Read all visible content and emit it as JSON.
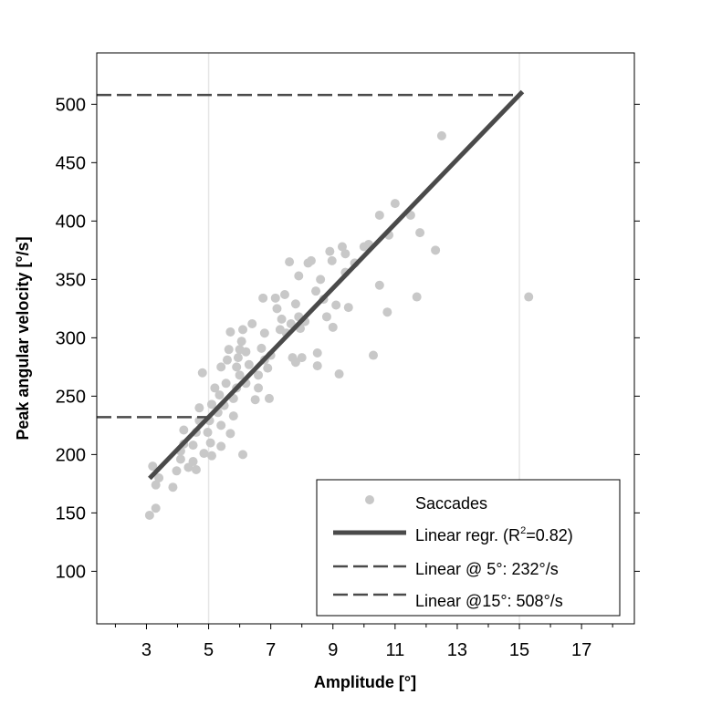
{
  "chart_data": {
    "type": "scatter",
    "title": "",
    "xlabel": "Amplitude [°]",
    "ylabel": "Peak angular velocity [°/s]",
    "xlim": [
      1.4,
      18.7
    ],
    "ylim": [
      55,
      544
    ],
    "xticks": [
      3,
      5,
      7,
      9,
      11,
      13,
      15,
      17
    ],
    "yticks": [
      100,
      150,
      200,
      250,
      300,
      350,
      400,
      450,
      500
    ],
    "vgrid": [
      5,
      15
    ],
    "legend_position": "bottom-right",
    "colors": {
      "points": "#c8c8c8",
      "line": "#4a4a4a",
      "grid": "#e6e6e6"
    },
    "series": [
      {
        "name": "Saccades",
        "kind": "points",
        "points": [
          [
            3.1,
            148
          ],
          [
            3.3,
            154
          ],
          [
            3.2,
            190
          ],
          [
            3.3,
            174
          ],
          [
            3.4,
            180
          ],
          [
            3.85,
            172
          ],
          [
            3.97,
            186
          ],
          [
            4.1,
            196
          ],
          [
            4.1,
            203
          ],
          [
            4.2,
            209
          ],
          [
            4.2,
            221
          ],
          [
            4.35,
            189
          ],
          [
            4.5,
            194
          ],
          [
            4.5,
            208
          ],
          [
            4.6,
            219
          ],
          [
            4.6,
            187
          ],
          [
            4.7,
            229
          ],
          [
            4.7,
            240
          ],
          [
            4.8,
            270
          ],
          [
            4.85,
            201
          ],
          [
            4.97,
            219
          ],
          [
            5.03,
            229
          ],
          [
            5.06,
            210
          ],
          [
            5.1,
            199
          ],
          [
            5.1,
            243
          ],
          [
            5.2,
            257
          ],
          [
            5.3,
            236
          ],
          [
            5.35,
            251
          ],
          [
            5.4,
            275
          ],
          [
            5.4,
            207
          ],
          [
            5.4,
            225
          ],
          [
            5.5,
            242
          ],
          [
            5.56,
            261
          ],
          [
            5.6,
            281
          ],
          [
            5.65,
            290
          ],
          [
            5.7,
            305
          ],
          [
            5.7,
            218
          ],
          [
            5.8,
            233
          ],
          [
            5.8,
            248
          ],
          [
            5.9,
            257
          ],
          [
            5.9,
            275
          ],
          [
            5.95,
            283
          ],
          [
            6.0,
            290
          ],
          [
            6.0,
            268
          ],
          [
            6.06,
            297
          ],
          [
            6.1,
            200
          ],
          [
            6.1,
            307
          ],
          [
            6.2,
            288
          ],
          [
            6.2,
            261
          ],
          [
            6.3,
            277
          ],
          [
            6.4,
            312
          ],
          [
            6.5,
            247
          ],
          [
            6.6,
            257
          ],
          [
            6.6,
            268
          ],
          [
            6.7,
            291
          ],
          [
            6.75,
            334
          ],
          [
            6.8,
            281
          ],
          [
            6.8,
            304
          ],
          [
            6.9,
            274
          ],
          [
            6.95,
            248
          ],
          [
            7.0,
            285
          ],
          [
            7.15,
            334
          ],
          [
            7.2,
            325
          ],
          [
            7.3,
            307
          ],
          [
            7.35,
            316
          ],
          [
            7.45,
            337
          ],
          [
            7.5,
            304
          ],
          [
            7.6,
            365
          ],
          [
            7.65,
            312
          ],
          [
            7.7,
            283
          ],
          [
            7.8,
            279
          ],
          [
            7.8,
            329
          ],
          [
            7.9,
            353
          ],
          [
            7.9,
            318
          ],
          [
            7.95,
            308
          ],
          [
            8.0,
            283
          ],
          [
            8.1,
            314
          ],
          [
            8.2,
            364
          ],
          [
            8.3,
            366
          ],
          [
            8.45,
            340
          ],
          [
            8.5,
            287
          ],
          [
            8.5,
            276
          ],
          [
            8.6,
            350
          ],
          [
            8.7,
            333
          ],
          [
            8.8,
            318
          ],
          [
            8.9,
            374
          ],
          [
            8.97,
            366
          ],
          [
            9.0,
            309
          ],
          [
            9.1,
            328
          ],
          [
            9.2,
            269
          ],
          [
            9.3,
            378
          ],
          [
            9.4,
            356
          ],
          [
            9.4,
            372
          ],
          [
            9.5,
            326
          ],
          [
            9.7,
            364
          ],
          [
            10.0,
            378
          ],
          [
            10.15,
            380
          ],
          [
            10.3,
            285
          ],
          [
            10.5,
            405
          ],
          [
            10.5,
            345
          ],
          [
            10.75,
            322
          ],
          [
            10.8,
            388
          ],
          [
            11.0,
            415
          ],
          [
            11.5,
            405
          ],
          [
            11.7,
            335
          ],
          [
            11.8,
            390
          ],
          [
            12.3,
            375
          ],
          [
            12.5,
            473
          ],
          [
            15.3,
            335
          ]
        ]
      },
      {
        "name": "Linear regr. (R²=0.82)",
        "kind": "line",
        "x": [
          3.1,
          15.1
        ],
        "y": [
          179.6,
          510.8
        ]
      },
      {
        "name": "Linear @ 5°: 232°/s",
        "kind": "dashed",
        "x": [
          1.4,
          5
        ],
        "y": [
          232,
          232
        ]
      },
      {
        "name": "Linear @15°: 508°/s",
        "kind": "dashed",
        "x": [
          1.4,
          15
        ],
        "y": [
          508,
          508
        ]
      }
    ],
    "legend": [
      "Saccades",
      "Linear regr. (R",
      "2",
      "=0.82)",
      "Linear @ 5°: 232°/s",
      "Linear @15°: 508°/s"
    ]
  }
}
